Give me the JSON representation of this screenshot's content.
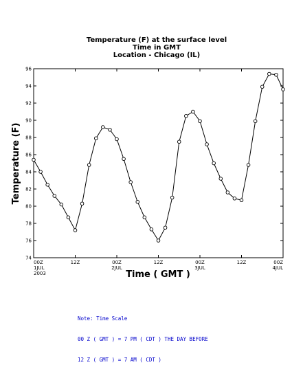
{
  "chart_data": {
    "type": "line",
    "title_lines": [
      "Temperature (F) at the surface level",
      "Time in GMT",
      "Location - Chicago (IL)"
    ],
    "xlabel": "Time ( GMT )",
    "ylabel": "Temperature (F)",
    "ylim": [
      74,
      96
    ],
    "yticks": [
      74,
      76,
      78,
      80,
      82,
      84,
      86,
      88,
      90,
      92,
      94,
      96
    ],
    "xlim_hours": [
      0,
      72
    ],
    "xticks": [
      {
        "hour": 0,
        "label": "00Z",
        "sub1": "1JUL",
        "sub2": "2003"
      },
      {
        "hour": 12,
        "label": "12Z",
        "sub1": "",
        "sub2": ""
      },
      {
        "hour": 24,
        "label": "00Z",
        "sub1": "2JUL",
        "sub2": ""
      },
      {
        "hour": 36,
        "label": "12Z",
        "sub1": "",
        "sub2": ""
      },
      {
        "hour": 48,
        "label": "00Z",
        "sub1": "3JUL",
        "sub2": ""
      },
      {
        "hour": 60,
        "label": "12Z",
        "sub1": "",
        "sub2": ""
      },
      {
        "hour": 72,
        "label": "00Z",
        "sub1": "4JUL",
        "sub2": ""
      }
    ],
    "grid": false,
    "series": [
      {
        "x": [
          0,
          2,
          4,
          6,
          8,
          10,
          12,
          14,
          16,
          18,
          20,
          22,
          24,
          26,
          28,
          30,
          32,
          34,
          36,
          38,
          40,
          42,
          44,
          46,
          48,
          50,
          52,
          54,
          56,
          58,
          60,
          62,
          64,
          66,
          68,
          70,
          72
        ],
        "y": [
          85.4,
          84.0,
          82.5,
          81.2,
          80.2,
          78.7,
          77.2,
          80.3,
          84.8,
          87.9,
          89.2,
          88.9,
          87.8,
          85.5,
          82.8,
          80.5,
          78.7,
          77.3,
          76.0,
          77.5,
          81.0,
          87.5,
          90.5,
          91.0,
          89.9,
          87.2,
          85.0,
          83.2,
          81.6,
          80.9,
          80.7,
          84.8,
          89.9,
          93.9,
          95.4,
          95.3,
          93.6
        ]
      }
    ]
  },
  "note": {
    "line1": "Note: Time Scale",
    "line2": "00 Z ( GMT ) = 7 PM ( CDT ) THE DAY BEFORE",
    "line3": "12 Z ( GMT ) = 7 AM ( CDT )"
  }
}
